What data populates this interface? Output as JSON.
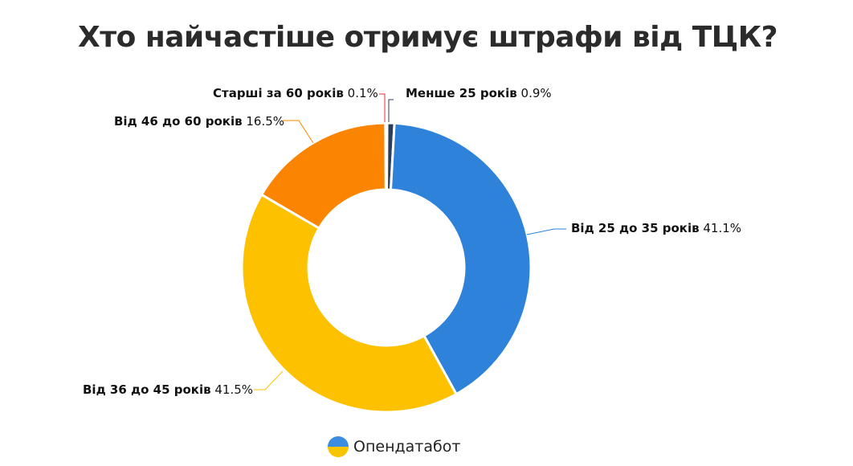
{
  "title": "Хто найчастіше отримує штрафи від ТЦК?",
  "chart_data": {
    "type": "pie",
    "variant": "donut",
    "title": "Хто найчастіше отримує штрафи від ТЦК?",
    "categories": [
      "Менше 25 років",
      "Від 25 до 35 років",
      "Від 36 до 45 років",
      "Від 46 до 60 років",
      "Старші за 60 років"
    ],
    "values": [
      0.9,
      41.1,
      41.5,
      16.5,
      0.1
    ],
    "value_labels": [
      "0.9%",
      "41.1%",
      "41.5%",
      "16.5%",
      "0.1%"
    ],
    "colors": [
      "#2c3d5c",
      "#2e82d9",
      "#fdc100",
      "#fb8500",
      "#e8283c"
    ]
  },
  "brand": {
    "name": "Опендатабот"
  }
}
